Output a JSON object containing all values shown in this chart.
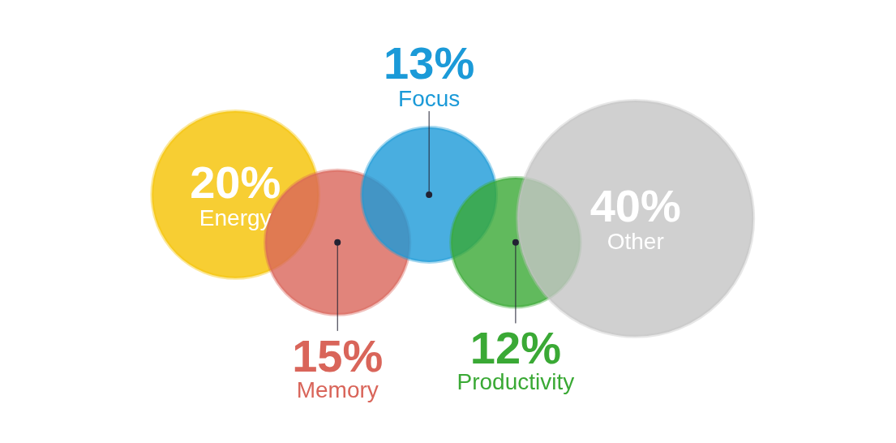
{
  "chart_data": {
    "type": "other",
    "categories": [
      "Energy",
      "Memory",
      "Focus",
      "Productivity",
      "Other"
    ],
    "values": [
      20,
      15,
      13,
      12,
      40
    ],
    "colors": [
      "#f5c200",
      "#d9655a",
      "#1b9ad8",
      "#3aa935",
      "#c4c4c4"
    ],
    "value_labels": [
      "20%",
      "15%",
      "13%",
      "12%",
      "40%"
    ]
  }
}
